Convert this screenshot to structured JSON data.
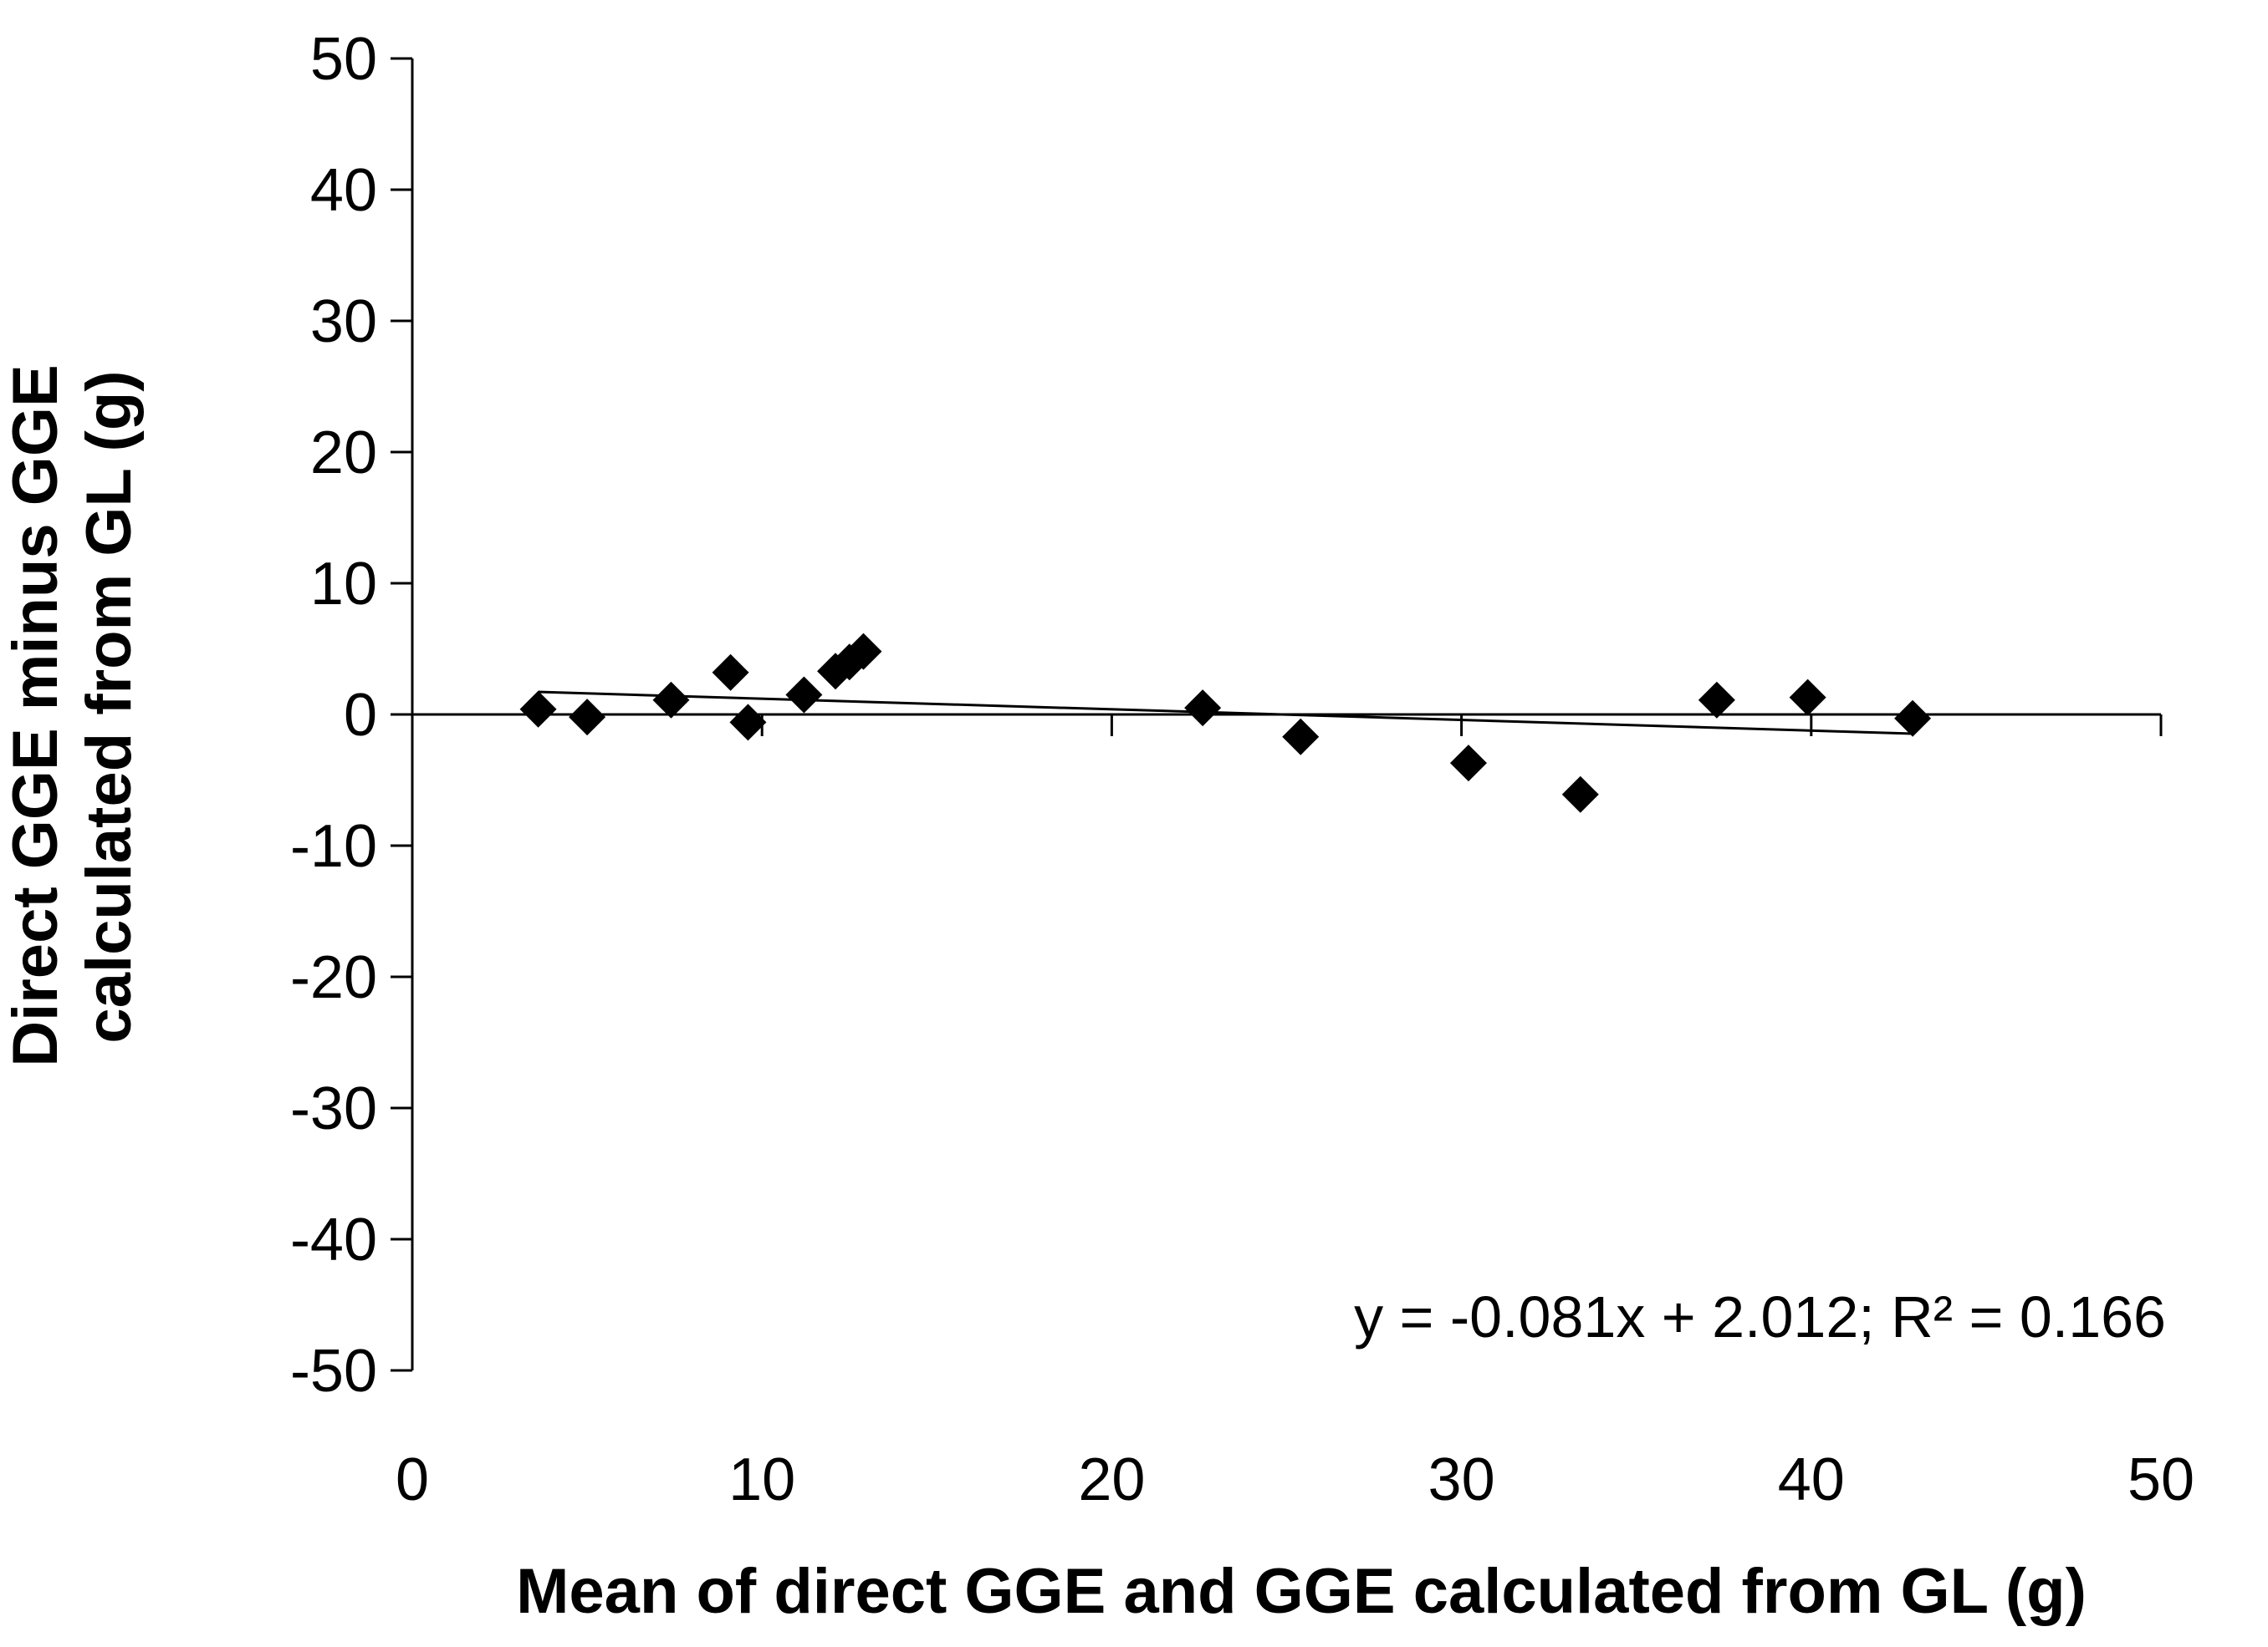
{
  "chart_data": {
    "type": "scatter",
    "title": "",
    "xlabel": "Mean of direct GGE and GGE calculated from GL (g)",
    "ylabel_lines": [
      "Direct GGE minus GGE",
      "calculated from GL (g)"
    ],
    "xlim": [
      0,
      50
    ],
    "ylim": [
      -50,
      50
    ],
    "x_ticks": [
      0,
      10,
      20,
      30,
      40,
      50
    ],
    "y_ticks": [
      50,
      40,
      30,
      20,
      10,
      0,
      -10,
      -20,
      -30,
      -40,
      -50
    ],
    "x_tick_labels": [
      "0",
      "10",
      "20",
      "30",
      "40",
      "50"
    ],
    "y_tick_labels": [
      "50",
      "40",
      "30",
      "20",
      "10",
      "0",
      "-10",
      "-20",
      "-30",
      "-40",
      "-50"
    ],
    "grid": false,
    "marker": "diamond",
    "marker_color": "#000000",
    "series": [
      {
        "points": [
          {
            "x": 3.6,
            "y": 0.4
          },
          {
            "x": 5.0,
            "y": -0.2
          },
          {
            "x": 7.4,
            "y": 1.1
          },
          {
            "x": 9.1,
            "y": 3.2
          },
          {
            "x": 9.6,
            "y": -0.6
          },
          {
            "x": 11.2,
            "y": 1.5
          },
          {
            "x": 12.1,
            "y": 3.3
          },
          {
            "x": 12.5,
            "y": 4.0
          },
          {
            "x": 12.9,
            "y": 4.8
          },
          {
            "x": 22.6,
            "y": 0.5
          },
          {
            "x": 25.4,
            "y": -1.7
          },
          {
            "x": 30.2,
            "y": -3.7
          },
          {
            "x": 33.4,
            "y": -6.1
          },
          {
            "x": 37.3,
            "y": 1.1
          },
          {
            "x": 39.9,
            "y": 1.3
          },
          {
            "x": 42.9,
            "y": -0.3
          }
        ]
      }
    ],
    "trendline": {
      "slope": -0.081,
      "intercept": 2.012,
      "x_range": [
        3.6,
        42.9
      ],
      "color": "#000000"
    },
    "annotation": "y = -0.081x  + 2.012; R² = 0.166"
  }
}
